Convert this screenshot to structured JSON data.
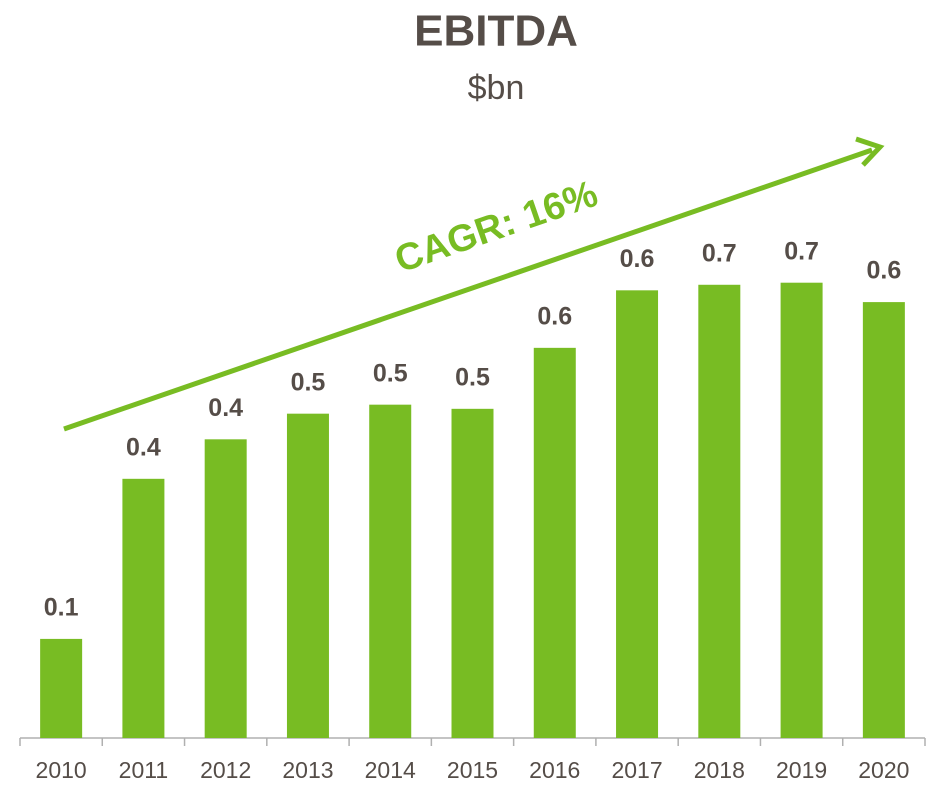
{
  "chart_data": {
    "type": "bar",
    "title": "EBITDA",
    "subtitle": "$bn",
    "annotation": "CAGR: 16%",
    "categories": [
      "2010",
      "2011",
      "2012",
      "2013",
      "2014",
      "2015",
      "2016",
      "2017",
      "2018",
      "2019",
      "2020"
    ],
    "values": [
      0.143,
      0.374,
      0.431,
      0.468,
      0.481,
      0.475,
      0.563,
      0.646,
      0.654,
      0.657,
      0.629
    ],
    "value_labels": [
      "0.1",
      "0.4",
      "0.4",
      "0.5",
      "0.5",
      "0.5",
      "0.6",
      "0.6",
      "0.7",
      "0.7",
      "0.6"
    ],
    "color": "#78bc23",
    "ylim": [
      0,
      1
    ]
  }
}
